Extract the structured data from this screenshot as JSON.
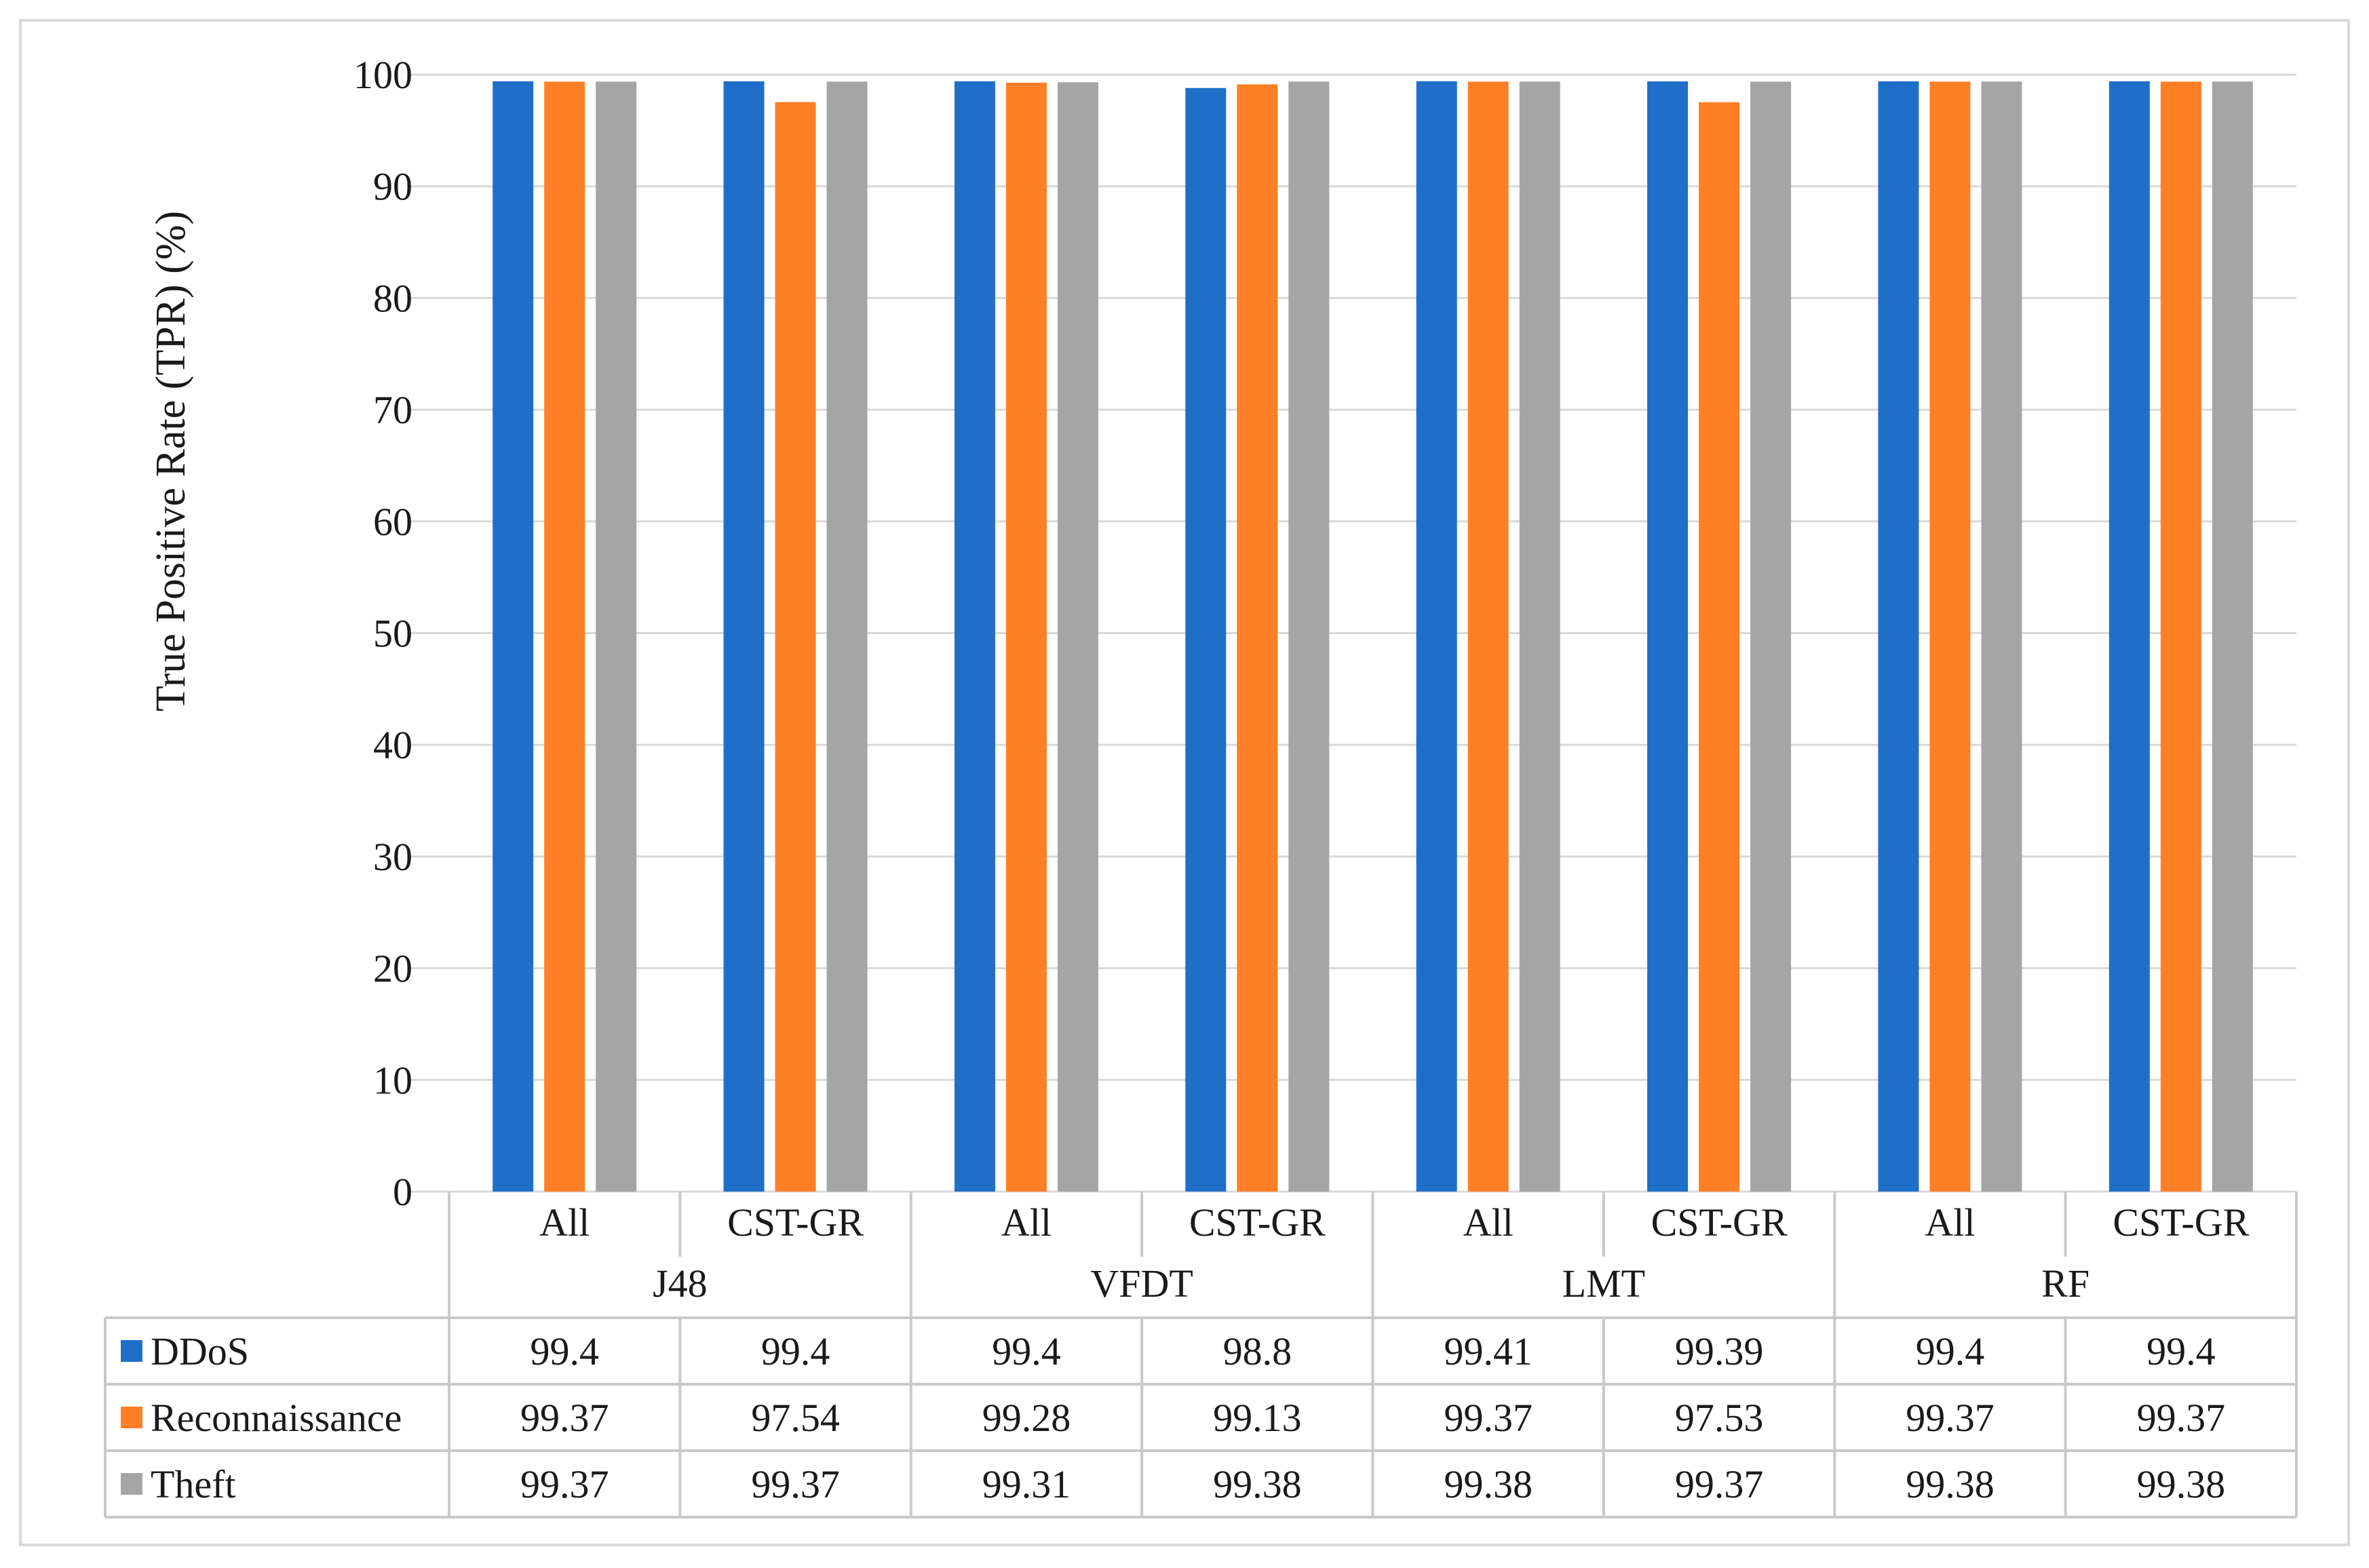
{
  "chart_data": {
    "type": "bar",
    "ylabel": "True Positive Rate (TPR) (%)",
    "xlabel": "",
    "ylim": [
      0,
      100
    ],
    "yticks": [
      0,
      10,
      20,
      30,
      40,
      50,
      60,
      70,
      80,
      90,
      100
    ],
    "grid": true,
    "legend_placement": "data-table-left",
    "groups": [
      {
        "name": "J48",
        "categories": [
          "All",
          "CST-GR"
        ]
      },
      {
        "name": "VFDT",
        "categories": [
          "All",
          "CST-GR"
        ]
      },
      {
        "name": "LMT",
        "categories": [
          "All",
          "CST-GR"
        ]
      },
      {
        "name": "RF",
        "categories": [
          "All",
          "CST-GR"
        ]
      }
    ],
    "series": [
      {
        "name": "DDoS",
        "color": "#1f6fc9",
        "values": [
          99.4,
          99.4,
          99.4,
          98.8,
          99.41,
          99.39,
          99.4,
          99.4
        ]
      },
      {
        "name": "Reconnaissance",
        "color": "#ff7f27",
        "values": [
          99.37,
          97.54,
          99.28,
          99.13,
          99.37,
          97.53,
          99.37,
          99.37
        ]
      },
      {
        "name": "Theft",
        "color": "#a5a5a5",
        "values": [
          99.37,
          99.37,
          99.31,
          99.38,
          99.38,
          99.37,
          99.38,
          99.38
        ]
      }
    ],
    "table_values": [
      [
        "99.4",
        "99.4",
        "99.4",
        "98.8",
        "99.41",
        "99.39",
        "99.4",
        "99.4"
      ],
      [
        "99.37",
        "97.54",
        "99.28",
        "99.13",
        "99.37",
        "97.53",
        "99.37",
        "99.37"
      ],
      [
        "99.37",
        "99.37",
        "99.31",
        "99.38",
        "99.38",
        "99.37",
        "99.38",
        "99.38"
      ]
    ]
  }
}
